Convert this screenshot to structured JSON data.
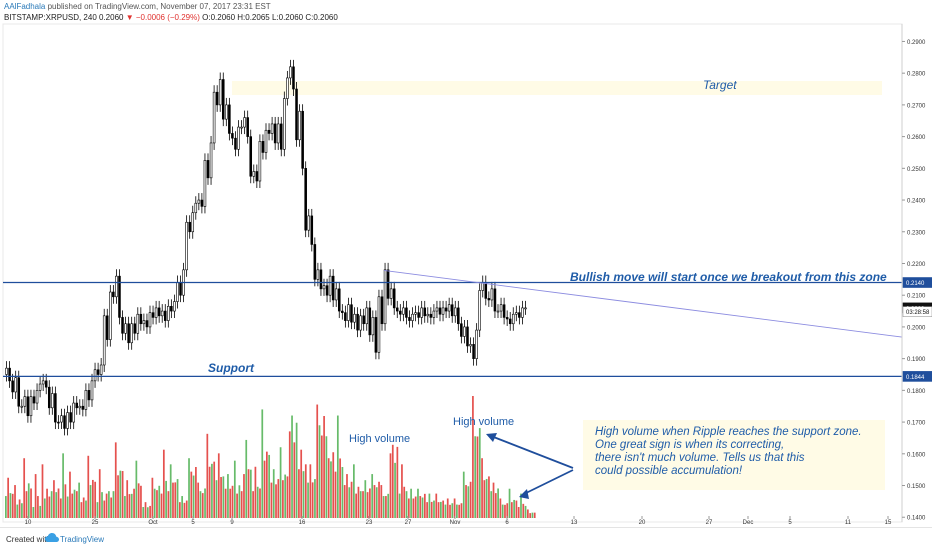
{
  "header": {
    "author": "AAlFadhala",
    "published": "published on TradingView.com, November 07, 2017 23:31 EST",
    "symbol": "BITSTAMP:XRPUSD, 240",
    "last": "0.2060",
    "change": "−0.0006 (−0.29%)",
    "ohlc": "O:0.2060 H:0.2065 L:0.2060 C:0.2060"
  },
  "footer": {
    "created": "Created with",
    "brand": "TradingView"
  },
  "chart_data": {
    "type": "candlestick",
    "y_ticks": [
      "0.2900",
      "0.2800",
      "0.2700",
      "0.2600",
      "0.2500",
      "0.2400",
      "0.2300",
      "0.2200",
      "0.2100",
      "0.2000",
      "0.1900",
      "0.1800",
      "0.1700",
      "0.1600",
      "0.1500",
      "0.1400"
    ],
    "x_ticks": [
      "10",
      "25",
      "Oct",
      "5",
      "9",
      "16",
      "23",
      "27",
      "Nov",
      "6",
      "13",
      "20",
      "27",
      "Dec",
      "5",
      "11",
      "15"
    ],
    "ylim": [
      0.1385,
      0.2955
    ],
    "price_badges": [
      {
        "value": "0.2140",
        "price": 0.214,
        "color": "#1f4e9c"
      },
      {
        "value": "0.2060",
        "price": 0.206,
        "color": "#111111"
      },
      {
        "value": "03:28:58",
        "price": 0.2048,
        "color": "#ffffff"
      },
      {
        "value": "0.1844",
        "price": 0.1844,
        "color": "#1f4e9c"
      }
    ],
    "levels": [
      {
        "name": "resistance",
        "price": 0.214
      },
      {
        "name": "support",
        "price": 0.1844
      }
    ],
    "price_path": [
      [
        0.187,
        0.183
      ],
      [
        0.184,
        0.175
      ],
      [
        0.178,
        0.172
      ],
      [
        0.176,
        0.18
      ],
      [
        0.183,
        0.181
      ],
      [
        0.179,
        0.17
      ],
      [
        0.172,
        0.168
      ],
      [
        0.17,
        0.176
      ],
      [
        0.175,
        0.174
      ],
      [
        0.177,
        0.183
      ],
      [
        0.185,
        0.188
      ],
      [
        0.196,
        0.211
      ],
      [
        0.216,
        0.203
      ],
      [
        0.201,
        0.195
      ],
      [
        0.198,
        0.204
      ],
      [
        0.202,
        0.2
      ],
      [
        0.203,
        0.206
      ],
      [
        0.205,
        0.202
      ],
      [
        0.205,
        0.208
      ],
      [
        0.21,
        0.218
      ],
      [
        0.23,
        0.236
      ],
      [
        0.24,
        0.238
      ],
      [
        0.247,
        0.258
      ],
      [
        0.27,
        0.278
      ],
      [
        0.27,
        0.261
      ],
      [
        0.256,
        0.263
      ],
      [
        0.266,
        0.26
      ],
      [
        0.249,
        0.246
      ],
      [
        0.255,
        0.262
      ],
      [
        0.264,
        0.258
      ],
      [
        0.256,
        0.272
      ],
      [
        0.282,
        0.275
      ],
      [
        0.268,
        0.25
      ],
      [
        0.235,
        0.226
      ],
      [
        0.218,
        0.212
      ],
      [
        0.21,
        0.216
      ],
      [
        0.212,
        0.205
      ],
      [
        0.202,
        0.207
      ],
      [
        0.204,
        0.199
      ],
      [
        0.201,
        0.206
      ],
      [
        0.203,
        0.192
      ],
      [
        0.201,
        0.218
      ],
      [
        0.212,
        0.206
      ],
      [
        0.204,
        0.206
      ],
      [
        0.202,
        0.204
      ],
      [
        0.203,
        0.206
      ],
      [
        0.204,
        0.203
      ],
      [
        0.206,
        0.204
      ],
      [
        0.205,
        0.207
      ],
      [
        0.206,
        0.201
      ],
      [
        0.2,
        0.194
      ],
      [
        0.19,
        0.199
      ],
      [
        0.214,
        0.209
      ],
      [
        0.212,
        0.205
      ],
      [
        0.207,
        0.203
      ],
      [
        0.201,
        0.204
      ],
      [
        0.203,
        0.206
      ],
      [
        0.206,
        0.206
      ]
    ],
    "volume_bars": [
      [
        0.18,
        0.33
      ],
      [
        0.27,
        0.11
      ],
      [
        0.49,
        0.22
      ],
      [
        0.09,
        0.36
      ],
      [
        0.44,
        0.16
      ],
      [
        0.22,
        0.31
      ],
      [
        0.16,
        0.53
      ],
      [
        0.38,
        0.2
      ],
      [
        0.29,
        0.13
      ],
      [
        0.51,
        0.27
      ],
      [
        0.13,
        0.4
      ],
      [
        0.2,
        0.22
      ],
      [
        0.62,
        0.35
      ],
      [
        0.18,
        0.31
      ],
      [
        0.24,
        0.47
      ],
      [
        0.09,
        0.13
      ],
      [
        0.33,
        0.24
      ],
      [
        0.2,
        0.56
      ],
      [
        0.44,
        0.29
      ],
      [
        0.13,
        0.18
      ],
      [
        0.49,
        0.38
      ],
      [
        0.29,
        0.22
      ],
      [
        0.69,
        0.42
      ],
      [
        0.31,
        0.53
      ],
      [
        0.24,
        0.36
      ],
      [
        0.47,
        0.2
      ],
      [
        0.36,
        0.64
      ],
      [
        0.22,
        0.42
      ],
      [
        0.89,
        0.47
      ],
      [
        0.29,
        0.4
      ],
      [
        0.58,
        0.31
      ],
      [
        0.71,
        0.84
      ],
      [
        0.4,
        0.56
      ],
      [
        0.29,
        0.44
      ],
      [
        0.93,
        0.76
      ],
      [
        0.67,
        0.49
      ],
      [
        0.38,
        0.84
      ],
      [
        0.27,
        0.36
      ],
      [
        0.44,
        0.2
      ],
      [
        0.22,
        0.31
      ],
      [
        0.36,
        0.27
      ],
      [
        0.27,
        0.18
      ],
      [
        0.53,
        0.6
      ],
      [
        0.2,
        0.44
      ],
      [
        0.16,
        0.24
      ],
      [
        0.24,
        0.18
      ],
      [
        0.13,
        0.2
      ],
      [
        0.2,
        0.13
      ],
      [
        0.11,
        0.16
      ],
      [
        0.16,
        0.11
      ],
      [
        0.38,
        0.27
      ],
      [
        1.0,
        0.67
      ],
      [
        0.49,
        0.31
      ],
      [
        0.22,
        0.29
      ],
      [
        0.16,
        0.11
      ],
      [
        0.24,
        0.13
      ],
      [
        0.09,
        0.2
      ],
      [
        0.07,
        0.04
      ]
    ],
    "annotations": {
      "target": "Target",
      "breakout": "Bullish move will start once we breakout from this zone",
      "support": "Support",
      "high_volume_1": "High volume",
      "high_volume_2": "High volume",
      "note": [
        "High volume when Ripple reaches the support zone.",
        "One great sign is when its correcting,",
        "there isn't much volume. Tells us that this",
        "could possible accumulation!"
      ]
    },
    "colors": {
      "up": "#4caf50",
      "down": "#e0322f",
      "candle": "#000000",
      "line": "#1f4e9c",
      "annotation": "#1f5ca8",
      "zone": "#fffbe6"
    }
  }
}
